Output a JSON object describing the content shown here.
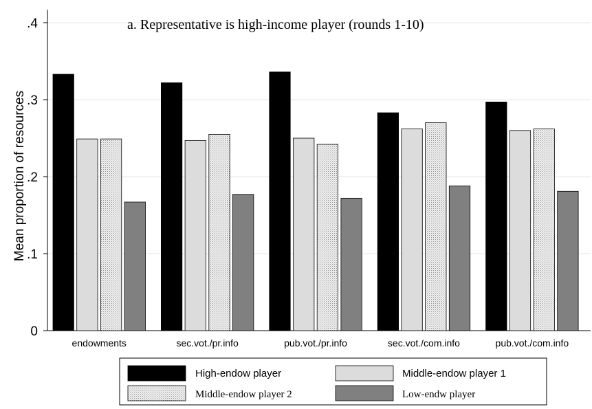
{
  "chart_data": {
    "type": "bar",
    "title": "a. Representative is high-income player (rounds 1-10)",
    "ylabel": "Mean proportion of resources",
    "xlabel": "",
    "ylim": [
      0,
      0.4
    ],
    "yticks": [
      {
        "value": 0,
        "label": "0"
      },
      {
        "value": 0.1,
        "label": ".1"
      },
      {
        "value": 0.2,
        "label": ".2"
      },
      {
        "value": 0.3,
        "label": ".3"
      },
      {
        "value": 0.4,
        "label": ".4"
      }
    ],
    "categories": [
      "endowments",
      "sec.vot./pr.info",
      "pub.vot./pr.info",
      "sec.vot./com.info",
      "pub.vot./com.info"
    ],
    "series": [
      {
        "name": "High-endow player",
        "color": "#000000",
        "pattern": "solid",
        "values": [
          0.333,
          0.322,
          0.336,
          0.283,
          0.297
        ]
      },
      {
        "name": "Middle-endow player 1",
        "color": "#dcdcdc",
        "pattern": "solid",
        "values": [
          0.249,
          0.247,
          0.25,
          0.262,
          0.26
        ]
      },
      {
        "name": "Middle-endow player 2",
        "color": "#e8e8e8",
        "pattern": "dotted",
        "values": [
          0.249,
          0.255,
          0.242,
          0.27,
          0.262
        ]
      },
      {
        "name": "Low-endw player",
        "color": "#808080",
        "pattern": "solid",
        "values": [
          0.167,
          0.177,
          0.172,
          0.188,
          0.181
        ]
      }
    ],
    "grid": true,
    "legend": "bottom"
  }
}
